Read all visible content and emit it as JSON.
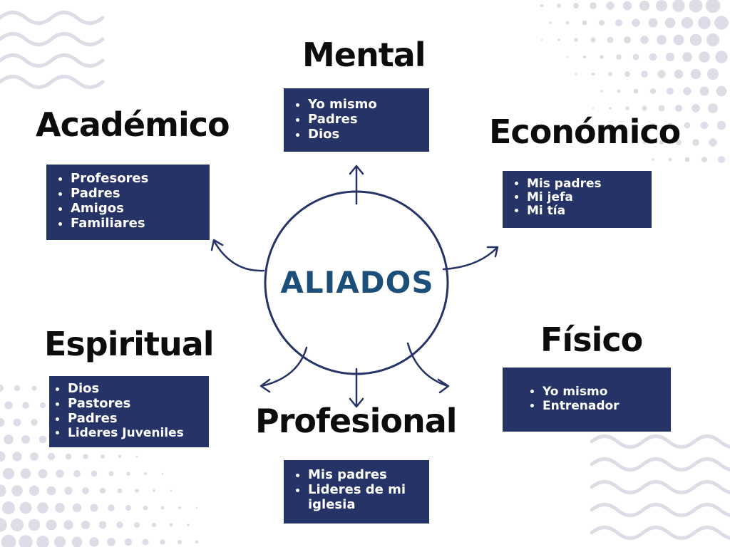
{
  "center": {
    "label": "ALIADOS"
  },
  "categories": [
    {
      "title": "Mental",
      "items": [
        "Yo mismo",
        "Padres",
        "Dios"
      ]
    },
    {
      "title": "Académico",
      "items": [
        "Profesores",
        "Padres",
        "Amigos",
        "Familiares"
      ]
    },
    {
      "title": "Económico",
      "items": [
        "Mis padres",
        "Mi jefa",
        "Mi tía"
      ]
    },
    {
      "title": "Espiritual",
      "items": [
        "Dios",
        "Pastores",
        "Padres",
        "Lideres Juveniles"
      ]
    },
    {
      "title": "Físico",
      "items": [
        "Yo mismo",
        "Entrenador"
      ]
    },
    {
      "title": "Profesional",
      "items": [
        "Mis padres",
        "Lideres de mi iglesia"
      ]
    }
  ],
  "colors": {
    "box": "#253367",
    "center_text": "#1b4f7a",
    "decor": "#dcdde6"
  }
}
